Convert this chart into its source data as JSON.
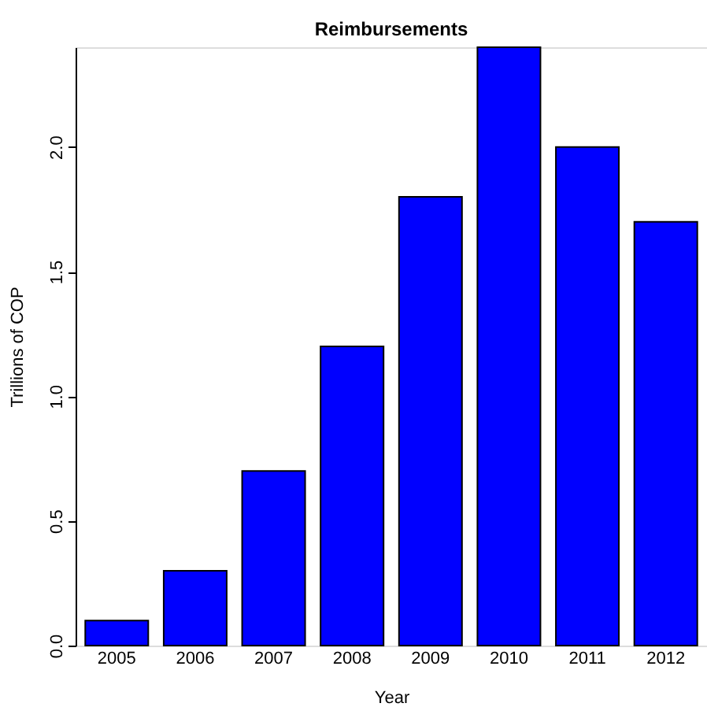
{
  "chart_data": {
    "type": "bar",
    "title": "Reimbursements",
    "xlabel": "Year",
    "ylabel": "Trillions of COP",
    "categories": [
      "2005",
      "2006",
      "2007",
      "2008",
      "2009",
      "2010",
      "2011",
      "2012"
    ],
    "values": [
      0.1,
      0.3,
      0.7,
      1.2,
      1.8,
      2.4,
      2.0,
      1.7
    ],
    "color": "#0000ff",
    "ylim": [
      0,
      2.4
    ],
    "yticks": [
      {
        "value": 0,
        "label": "0.0"
      },
      {
        "value": 0.5,
        "label": "0.5"
      },
      {
        "value": 1,
        "label": "1.0"
      },
      {
        "value": 1.5,
        "label": "1.5"
      },
      {
        "value": 2,
        "label": "2.0"
      }
    ],
    "grid": false
  }
}
